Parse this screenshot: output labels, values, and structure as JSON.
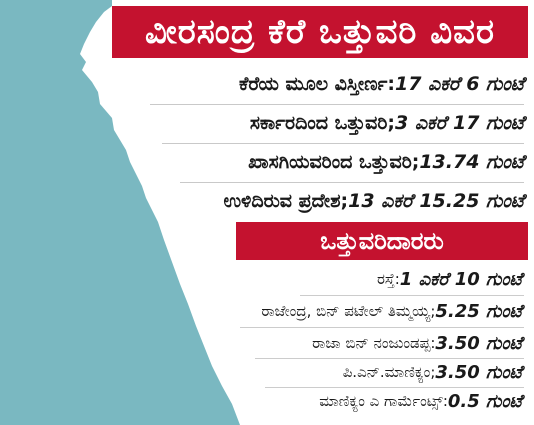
{
  "header": {
    "title": "ವೀರಸಂದ್ರ ಕೆರೆ ಒತ್ತುವರಿ ವಿವರ"
  },
  "details": [
    {
      "label": "ಕೆರೆಯ ಮೂಲ ವಿಸ್ತೀರ್ಣ: ",
      "value": "17 ಎಕರೆ 6 ಗುಂಟೆ"
    },
    {
      "label": "ಸರ್ಕಾರದಿಂದ ಒತ್ತುವರಿ; ",
      "value": "3 ಎಕರೆ 17 ಗುಂಟೆ"
    },
    {
      "label": "ಖಾಸಗಿಯವರಿಂದ ಒತ್ತುವರಿ; ",
      "value": "13.74 ಗುಂಟೆ"
    },
    {
      "label": "ಉಳಿದಿರುವ ಪ್ರದೇಶ; ",
      "value": "13 ಎಕರೆ 15.25 ಗುಂಟೆ"
    }
  ],
  "owners": {
    "heading": "ಒತ್ತುವರಿದಾರರು",
    "items": [
      {
        "label": "ರಸ್ತೆ: ",
        "value": "1 ಎಕರೆ 10 ಗುಂಟೆ"
      },
      {
        "label": "ರಾಜೇಂದ್ರ, ಬಿನ್ ಪಟೇಲ್ ತಿಮ್ಮಯ್ಯ; ",
        "value": "5.25 ಗುಂಟೆ"
      },
      {
        "label": "ರಾಜಾ ಬಿನ್ ನಂಜುಂಡಪ್ಪ: ",
        "value": "3.50 ಗುಂಟೆ"
      },
      {
        "label": "ಪಿ.ಎನ್.ಮಾಣಿಕ್ಯಂ; ",
        "value": "3.50 ಗುಂಟೆ"
      },
      {
        "label": "ಮಾಣಿಕ್ಯಂ ಎ ಗಾರ್ಮೆಂಟ್ಸ್: ",
        "value": "0.5 ಗುಂಟೆ"
      }
    ]
  },
  "colors": {
    "accent": "#c4122f",
    "water": "#7ab8c1"
  }
}
